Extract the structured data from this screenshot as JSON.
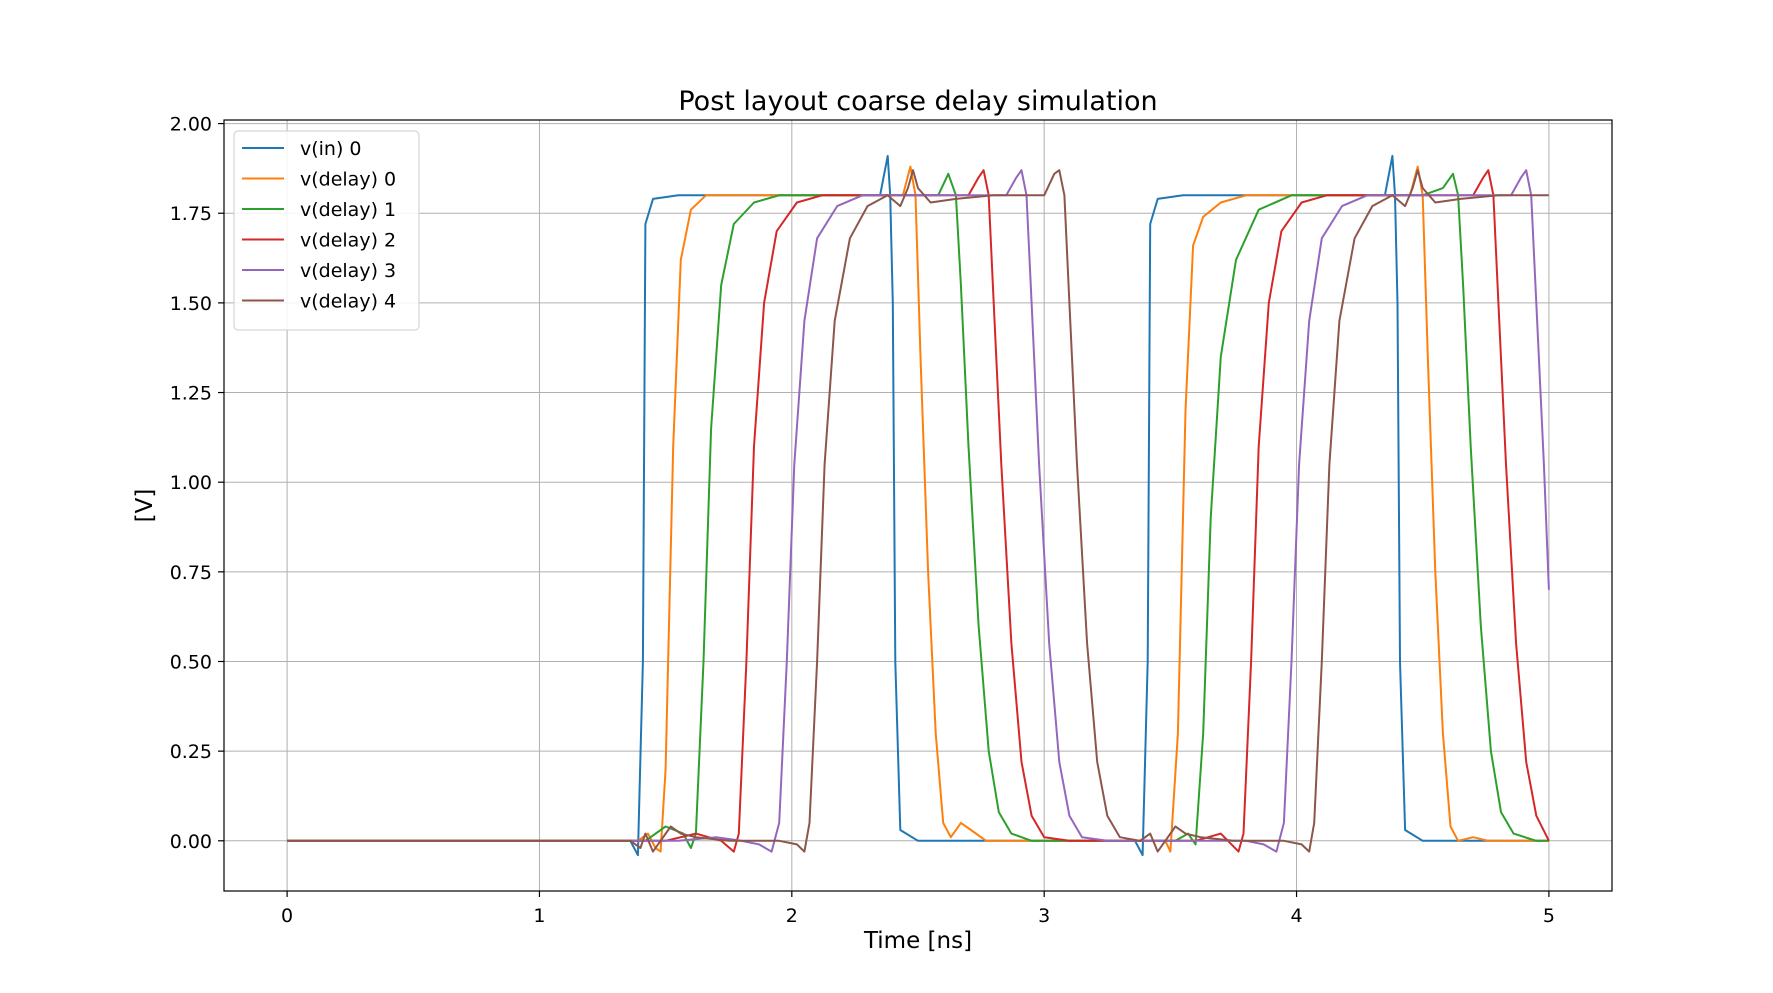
{
  "chart_data": {
    "type": "line",
    "title": "Post layout coarse delay simulation",
    "xlabel": "Time [ns]",
    "ylabel": "[V]",
    "xlim": [
      -0.25,
      5.25
    ],
    "ylim": [
      -0.14,
      2.01
    ],
    "xticks": [
      0,
      1,
      2,
      3,
      4,
      5
    ],
    "xtick_labels": [
      "0",
      "1",
      "2",
      "3",
      "4",
      "5"
    ],
    "yticks": [
      0,
      0.25,
      0.5,
      0.75,
      1.0,
      1.25,
      1.5,
      1.75,
      2.0
    ],
    "ytick_labels": [
      "0.00",
      "0.25",
      "0.50",
      "0.75",
      "1.00",
      "1.25",
      "1.50",
      "1.75",
      "2.00"
    ],
    "grid": true,
    "legend_position": "upper-left",
    "series": [
      {
        "name": "v(in) 0",
        "color": "#1f77b4",
        "points": [
          [
            0,
            0
          ],
          [
            1.36,
            0
          ],
          [
            1.39,
            -0.04
          ],
          [
            1.41,
            0.5
          ],
          [
            1.42,
            1.72
          ],
          [
            1.45,
            1.79
          ],
          [
            1.55,
            1.8
          ],
          [
            2.35,
            1.8
          ],
          [
            2.38,
            1.91
          ],
          [
            2.39,
            1.8
          ],
          [
            2.4,
            1.5
          ],
          [
            2.41,
            0.5
          ],
          [
            2.43,
            0.03
          ],
          [
            2.5,
            0
          ],
          [
            3.36,
            0
          ],
          [
            3.39,
            -0.04
          ],
          [
            3.41,
            0.5
          ],
          [
            3.42,
            1.72
          ],
          [
            3.45,
            1.79
          ],
          [
            3.55,
            1.8
          ],
          [
            4.35,
            1.8
          ],
          [
            4.38,
            1.91
          ],
          [
            4.39,
            1.8
          ],
          [
            4.4,
            1.5
          ],
          [
            4.41,
            0.5
          ],
          [
            4.43,
            0.03
          ],
          [
            4.5,
            0
          ],
          [
            5,
            0
          ]
        ]
      },
      {
        "name": "v(delay) 0",
        "color": "#ff7f0e",
        "points": [
          [
            0,
            0
          ],
          [
            1.39,
            0
          ],
          [
            1.43,
            0.02
          ],
          [
            1.46,
            -0.02
          ],
          [
            1.48,
            -0.03
          ],
          [
            1.5,
            0.2
          ],
          [
            1.53,
            1.1
          ],
          [
            1.56,
            1.62
          ],
          [
            1.6,
            1.76
          ],
          [
            1.66,
            1.8
          ],
          [
            2.44,
            1.8
          ],
          [
            2.47,
            1.88
          ],
          [
            2.49,
            1.8
          ],
          [
            2.51,
            1.35
          ],
          [
            2.54,
            0.75
          ],
          [
            2.57,
            0.3
          ],
          [
            2.6,
            0.05
          ],
          [
            2.63,
            0.01
          ],
          [
            2.67,
            0.05
          ],
          [
            2.71,
            0.03
          ],
          [
            2.77,
            0
          ],
          [
            3.48,
            0
          ],
          [
            3.5,
            -0.03
          ],
          [
            3.53,
            0.3
          ],
          [
            3.56,
            1.2
          ],
          [
            3.59,
            1.66
          ],
          [
            3.63,
            1.74
          ],
          [
            3.7,
            1.78
          ],
          [
            3.8,
            1.8
          ],
          [
            4.45,
            1.8
          ],
          [
            4.48,
            1.88
          ],
          [
            4.5,
            1.8
          ],
          [
            4.52,
            1.35
          ],
          [
            4.55,
            0.75
          ],
          [
            4.58,
            0.3
          ],
          [
            4.61,
            0.04
          ],
          [
            4.64,
            0
          ],
          [
            4.7,
            0.01
          ],
          [
            4.76,
            0
          ],
          [
            5,
            0
          ]
        ]
      },
      {
        "name": "v(delay) 1",
        "color": "#2ca02c",
        "points": [
          [
            0,
            0
          ],
          [
            1.42,
            0
          ],
          [
            1.5,
            0.04
          ],
          [
            1.57,
            0.02
          ],
          [
            1.6,
            -0.02
          ],
          [
            1.62,
            0.02
          ],
          [
            1.65,
            0.5
          ],
          [
            1.68,
            1.15
          ],
          [
            1.72,
            1.55
          ],
          [
            1.77,
            1.72
          ],
          [
            1.85,
            1.78
          ],
          [
            1.95,
            1.8
          ],
          [
            2.5,
            1.8
          ],
          [
            2.53,
            1.8
          ],
          [
            2.58,
            1.8
          ],
          [
            2.62,
            1.86
          ],
          [
            2.65,
            1.8
          ],
          [
            2.67,
            1.55
          ],
          [
            2.7,
            1.1
          ],
          [
            2.74,
            0.6
          ],
          [
            2.78,
            0.25
          ],
          [
            2.82,
            0.08
          ],
          [
            2.87,
            0.02
          ],
          [
            2.95,
            0
          ],
          [
            3.52,
            0
          ],
          [
            3.57,
            0.02
          ],
          [
            3.6,
            -0.01
          ],
          [
            3.63,
            0.3
          ],
          [
            3.66,
            0.9
          ],
          [
            3.7,
            1.35
          ],
          [
            3.76,
            1.62
          ],
          [
            3.85,
            1.76
          ],
          [
            3.98,
            1.8
          ],
          [
            4.5,
            1.8
          ],
          [
            4.58,
            1.82
          ],
          [
            4.62,
            1.86
          ],
          [
            4.64,
            1.8
          ],
          [
            4.66,
            1.55
          ],
          [
            4.69,
            1.1
          ],
          [
            4.73,
            0.6
          ],
          [
            4.77,
            0.25
          ],
          [
            4.81,
            0.08
          ],
          [
            4.86,
            0.02
          ],
          [
            4.95,
            0
          ],
          [
            5,
            0
          ]
        ]
      },
      {
        "name": "v(delay) 2",
        "color": "#d62728",
        "points": [
          [
            0,
            0
          ],
          [
            1.5,
            0
          ],
          [
            1.62,
            0.02
          ],
          [
            1.72,
            0
          ],
          [
            1.77,
            -0.03
          ],
          [
            1.79,
            0.02
          ],
          [
            1.82,
            0.5
          ],
          [
            1.85,
            1.1
          ],
          [
            1.89,
            1.5
          ],
          [
            1.94,
            1.7
          ],
          [
            2.02,
            1.78
          ],
          [
            2.12,
            1.8
          ],
          [
            2.7,
            1.8
          ],
          [
            2.74,
            1.85
          ],
          [
            2.76,
            1.87
          ],
          [
            2.78,
            1.8
          ],
          [
            2.8,
            1.5
          ],
          [
            2.83,
            1.05
          ],
          [
            2.87,
            0.55
          ],
          [
            2.91,
            0.22
          ],
          [
            2.95,
            0.07
          ],
          [
            3.0,
            0.01
          ],
          [
            3.1,
            0
          ],
          [
            3.6,
            0
          ],
          [
            3.7,
            0.02
          ],
          [
            3.77,
            -0.03
          ],
          [
            3.79,
            0.02
          ],
          [
            3.82,
            0.5
          ],
          [
            3.85,
            1.1
          ],
          [
            3.89,
            1.5
          ],
          [
            3.94,
            1.7
          ],
          [
            4.02,
            1.78
          ],
          [
            4.12,
            1.8
          ],
          [
            4.7,
            1.8
          ],
          [
            4.74,
            1.85
          ],
          [
            4.76,
            1.87
          ],
          [
            4.78,
            1.8
          ],
          [
            4.8,
            1.5
          ],
          [
            4.83,
            1.05
          ],
          [
            4.87,
            0.55
          ],
          [
            4.91,
            0.22
          ],
          [
            4.95,
            0.07
          ],
          [
            5,
            0
          ]
        ]
      },
      {
        "name": "v(delay) 3",
        "color": "#9467bd",
        "points": [
          [
            0,
            0
          ],
          [
            1.55,
            0
          ],
          [
            1.7,
            0.01
          ],
          [
            1.8,
            0
          ],
          [
            1.87,
            -0.01
          ],
          [
            1.92,
            -0.03
          ],
          [
            1.95,
            0.05
          ],
          [
            1.98,
            0.5
          ],
          [
            2.01,
            1.05
          ],
          [
            2.05,
            1.45
          ],
          [
            2.1,
            1.68
          ],
          [
            2.18,
            1.77
          ],
          [
            2.28,
            1.8
          ],
          [
            2.85,
            1.8
          ],
          [
            2.89,
            1.85
          ],
          [
            2.91,
            1.87
          ],
          [
            2.93,
            1.8
          ],
          [
            2.95,
            1.5
          ],
          [
            2.98,
            1.05
          ],
          [
            3.02,
            0.55
          ],
          [
            3.06,
            0.22
          ],
          [
            3.1,
            0.07
          ],
          [
            3.15,
            0.01
          ],
          [
            3.25,
            0
          ],
          [
            3.8,
            0
          ],
          [
            3.87,
            -0.01
          ],
          [
            3.92,
            -0.03
          ],
          [
            3.95,
            0.05
          ],
          [
            3.98,
            0.5
          ],
          [
            4.01,
            1.05
          ],
          [
            4.05,
            1.45
          ],
          [
            4.1,
            1.68
          ],
          [
            4.18,
            1.77
          ],
          [
            4.28,
            1.8
          ],
          [
            4.85,
            1.8
          ],
          [
            4.89,
            1.85
          ],
          [
            4.91,
            1.87
          ],
          [
            4.93,
            1.8
          ],
          [
            4.95,
            1.5
          ],
          [
            4.98,
            1.05
          ],
          [
            5.0,
            0.7
          ]
        ]
      },
      {
        "name": "v(delay) 4",
        "color": "#8c564b",
        "points": [
          [
            0,
            0
          ],
          [
            1.36,
            0
          ],
          [
            1.4,
            -0.02
          ],
          [
            1.42,
            0.02
          ],
          [
            1.45,
            -0.03
          ],
          [
            1.48,
            0
          ],
          [
            1.52,
            0.04
          ],
          [
            1.56,
            0.02
          ],
          [
            1.62,
            0.01
          ],
          [
            1.75,
            0
          ],
          [
            1.95,
            0
          ],
          [
            2.02,
            -0.01
          ],
          [
            2.05,
            -0.03
          ],
          [
            2.07,
            0.05
          ],
          [
            2.1,
            0.5
          ],
          [
            2.13,
            1.05
          ],
          [
            2.17,
            1.45
          ],
          [
            2.23,
            1.68
          ],
          [
            2.3,
            1.77
          ],
          [
            2.38,
            1.8
          ],
          [
            2.43,
            1.77
          ],
          [
            2.46,
            1.82
          ],
          [
            2.48,
            1.87
          ],
          [
            2.5,
            1.82
          ],
          [
            2.55,
            1.78
          ],
          [
            2.65,
            1.79
          ],
          [
            2.8,
            1.8
          ],
          [
            3.0,
            1.8
          ],
          [
            3.04,
            1.86
          ],
          [
            3.06,
            1.87
          ],
          [
            3.08,
            1.8
          ],
          [
            3.1,
            1.5
          ],
          [
            3.13,
            1.05
          ],
          [
            3.17,
            0.55
          ],
          [
            3.21,
            0.22
          ],
          [
            3.25,
            0.07
          ],
          [
            3.3,
            0.01
          ],
          [
            3.38,
            0
          ],
          [
            3.42,
            0.02
          ],
          [
            3.45,
            -0.03
          ],
          [
            3.48,
            0
          ],
          [
            3.52,
            0.04
          ],
          [
            3.56,
            0.02
          ],
          [
            3.62,
            0.01
          ],
          [
            3.75,
            0
          ],
          [
            3.95,
            0
          ],
          [
            4.02,
            -0.01
          ],
          [
            4.05,
            -0.03
          ],
          [
            4.07,
            0.05
          ],
          [
            4.1,
            0.5
          ],
          [
            4.13,
            1.05
          ],
          [
            4.17,
            1.45
          ],
          [
            4.23,
            1.68
          ],
          [
            4.3,
            1.77
          ],
          [
            4.38,
            1.8
          ],
          [
            4.43,
            1.77
          ],
          [
            4.46,
            1.82
          ],
          [
            4.48,
            1.87
          ],
          [
            4.5,
            1.82
          ],
          [
            4.55,
            1.78
          ],
          [
            4.65,
            1.79
          ],
          [
            4.8,
            1.8
          ],
          [
            5.0,
            1.8
          ]
        ]
      }
    ]
  }
}
